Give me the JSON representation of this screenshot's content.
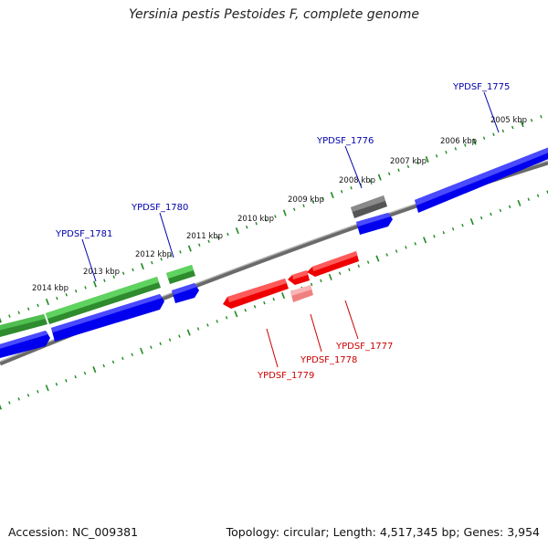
{
  "title": "Yersinia pestis Pestoides F, complete genome",
  "footer": {
    "accession": "Accession: NC_009381",
    "summary": "Topology: circular; Length: 4,517,345 bp; Genes: 3,954"
  },
  "colors": {
    "forward_cds": "#0000ee",
    "reverse_cds": "#ee0000",
    "rna_green": "#2e8b2e",
    "rna_green_light": "#5fd35f",
    "grey_feature": "#606060",
    "pink_feature": "#f08080",
    "backbone": "#808080",
    "ticks": "#1f8a1f",
    "forward_label": "#0000aa",
    "reverse_label": "#cc0000"
  },
  "kbp_ticks": [
    "2005 kbp",
    "2006 kbp",
    "2007 kbp",
    "2008 kbp",
    "2009 kbp",
    "2010 kbp",
    "2011 kbp",
    "2012 kbp",
    "2013 kbp",
    "2014 kbp"
  ],
  "gene_labels": [
    {
      "name": "YPDSF_1775",
      "strand": "forward"
    },
    {
      "name": "YPDSF_1776",
      "strand": "forward"
    },
    {
      "name": "YPDSF_1780",
      "strand": "forward"
    },
    {
      "name": "YPDSF_1781",
      "strand": "forward"
    },
    {
      "name": "YPDSF_1777",
      "strand": "reverse"
    },
    {
      "name": "YPDSF_1778",
      "strand": "reverse"
    },
    {
      "name": "YPDSF_1779",
      "strand": "reverse"
    }
  ]
}
